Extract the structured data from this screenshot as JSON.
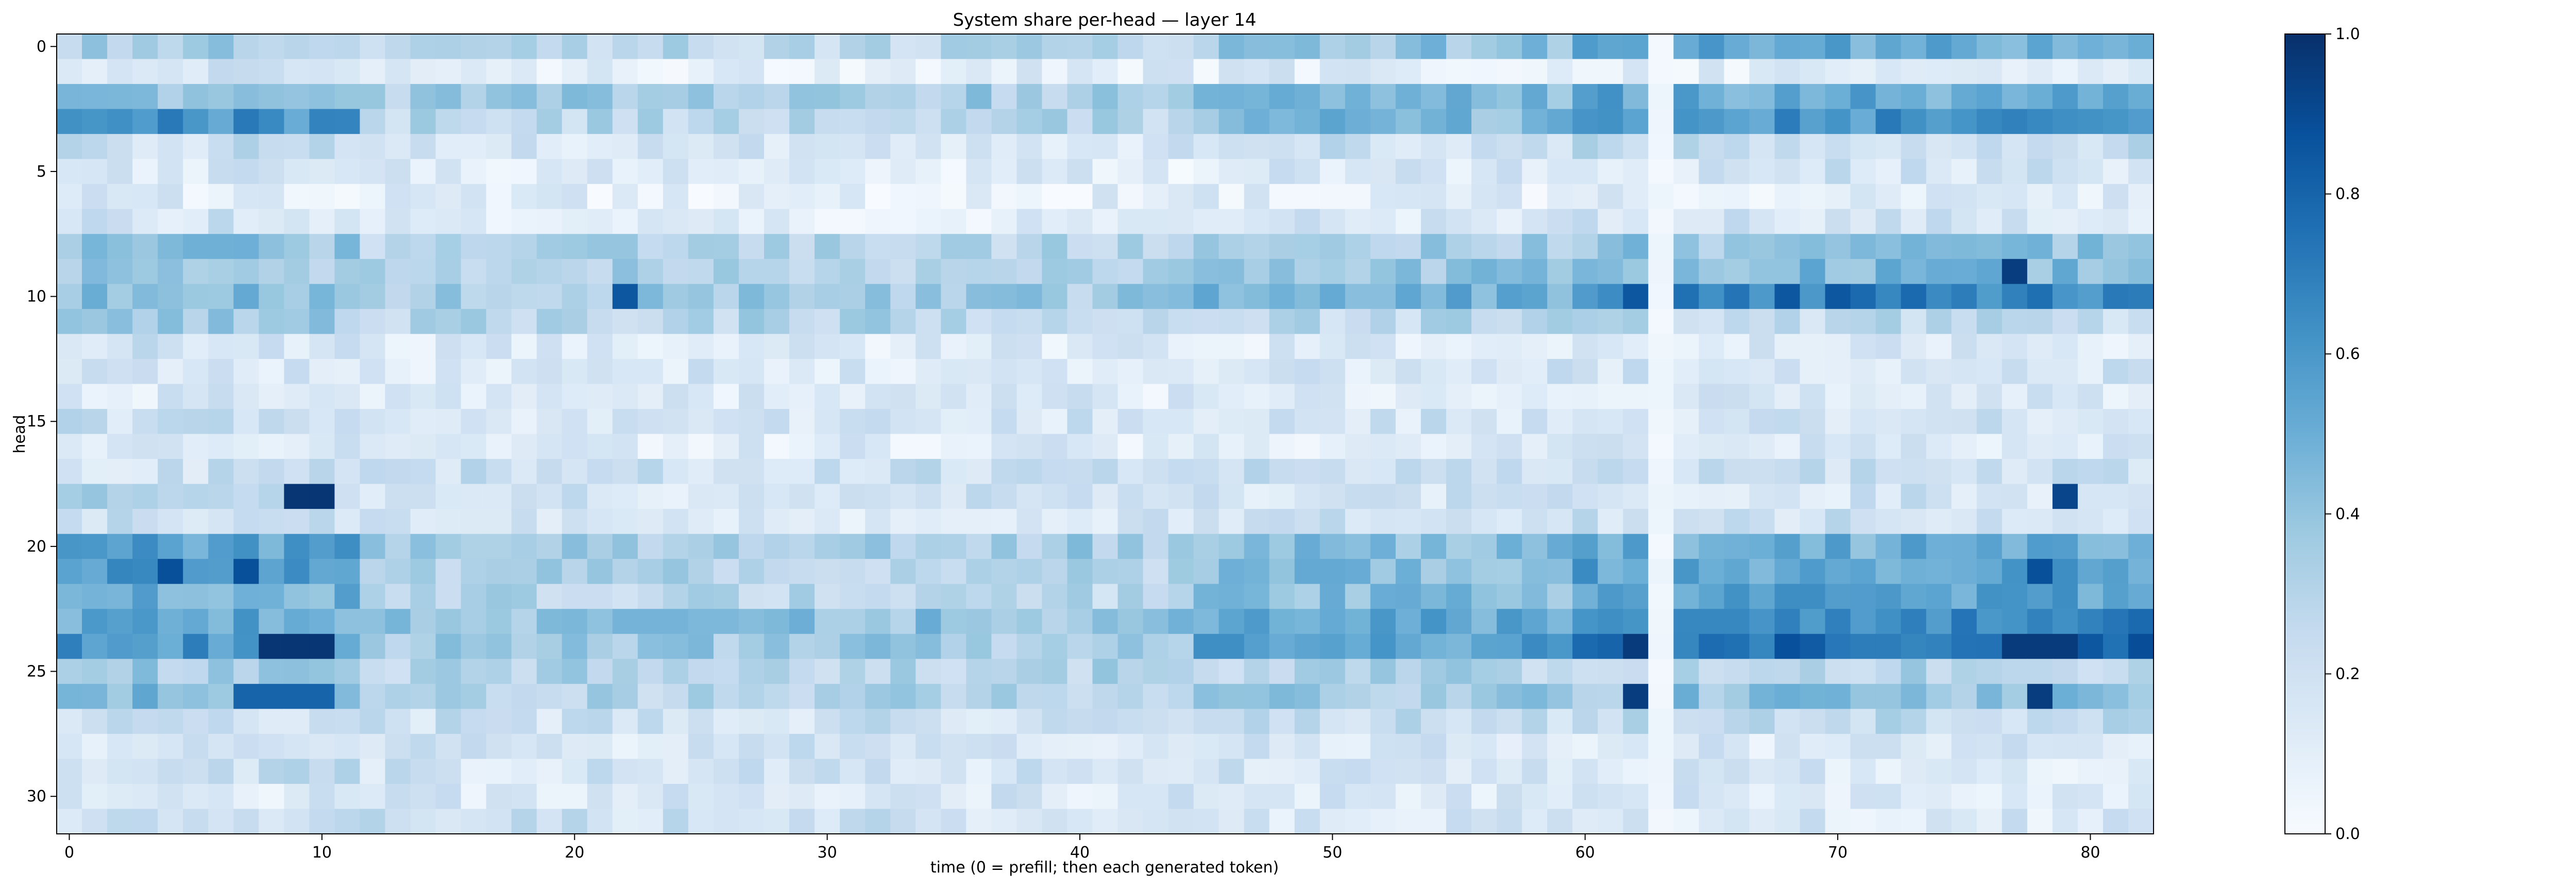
{
  "chart_data": {
    "type": "heatmap",
    "title": "System share per-head — layer 14",
    "xlabel": "time (0 = prefill; then each generated token)",
    "ylabel": "head",
    "x_ticks": [
      0,
      10,
      20,
      30,
      40,
      50,
      60,
      70,
      80
    ],
    "y_ticks": [
      0,
      5,
      10,
      15,
      20,
      25,
      30
    ],
    "n_cols": 83,
    "n_rows": 32,
    "colormap": "Blues",
    "colorbar": {
      "range": [
        0.0,
        1.0
      ],
      "ticks": [
        "0.0",
        "0.2",
        "0.4",
        "0.6",
        "0.8",
        "1.0"
      ]
    },
    "gap_columns": [
      63
    ],
    "row_profiles": [
      {
        "head": 0,
        "left": 0.35,
        "mid": 0.28,
        "right": 0.5
      },
      {
        "head": 1,
        "left": 0.18,
        "mid": 0.12,
        "right": 0.12
      },
      {
        "head": 2,
        "left": 0.4,
        "mid": 0.35,
        "right": 0.52
      },
      {
        "head": 3,
        "left": 0.58,
        "mid": 0.28,
        "right": 0.6
      },
      {
        "head": 4,
        "left": 0.22,
        "mid": 0.17,
        "right": 0.25
      },
      {
        "head": 5,
        "left": 0.15,
        "mid": 0.12,
        "right": 0.18
      },
      {
        "head": 6,
        "left": 0.12,
        "mid": 0.1,
        "right": 0.12
      },
      {
        "head": 7,
        "left": 0.18,
        "mid": 0.12,
        "right": 0.18
      },
      {
        "head": 8,
        "left": 0.4,
        "mid": 0.3,
        "right": 0.38
      },
      {
        "head": 9,
        "left": 0.35,
        "mid": 0.32,
        "right": 0.45
      },
      {
        "head": 10,
        "left": 0.45,
        "mid": 0.35,
        "right": 0.68
      },
      {
        "head": 11,
        "left": 0.35,
        "mid": 0.3,
        "right": 0.25
      },
      {
        "head": 12,
        "left": 0.18,
        "mid": 0.12,
        "right": 0.15
      },
      {
        "head": 13,
        "left": 0.15,
        "mid": 0.15,
        "right": 0.18
      },
      {
        "head": 14,
        "left": 0.15,
        "mid": 0.13,
        "right": 0.15
      },
      {
        "head": 15,
        "left": 0.22,
        "mid": 0.18,
        "right": 0.18
      },
      {
        "head": 16,
        "left": 0.15,
        "mid": 0.12,
        "right": 0.15
      },
      {
        "head": 17,
        "left": 0.2,
        "mid": 0.22,
        "right": 0.22
      },
      {
        "head": 18,
        "left": 0.3,
        "mid": 0.18,
        "right": 0.18
      },
      {
        "head": 19,
        "left": 0.2,
        "mid": 0.17,
        "right": 0.2
      },
      {
        "head": 20,
        "left": 0.55,
        "mid": 0.35,
        "right": 0.5
      },
      {
        "head": 21,
        "left": 0.6,
        "mid": 0.3,
        "right": 0.55
      },
      {
        "head": 22,
        "left": 0.5,
        "mid": 0.28,
        "right": 0.55
      },
      {
        "head": 23,
        "left": 0.52,
        "mid": 0.4,
        "right": 0.68
      },
      {
        "head": 24,
        "left": 0.6,
        "mid": 0.35,
        "right": 0.78
      },
      {
        "head": 25,
        "left": 0.35,
        "mid": 0.3,
        "right": 0.3
      },
      {
        "head": 26,
        "left": 0.45,
        "mid": 0.3,
        "right": 0.4
      },
      {
        "head": 27,
        "left": 0.22,
        "mid": 0.2,
        "right": 0.25
      },
      {
        "head": 28,
        "left": 0.18,
        "mid": 0.17,
        "right": 0.15
      },
      {
        "head": 29,
        "left": 0.22,
        "mid": 0.18,
        "right": 0.15
      },
      {
        "head": 30,
        "left": 0.15,
        "mid": 0.15,
        "right": 0.15
      },
      {
        "head": 31,
        "left": 0.18,
        "mid": 0.2,
        "right": 0.15
      }
    ],
    "hotspots": [
      {
        "head": 3,
        "cols": [
          4,
          7,
          72
        ],
        "value": 0.72
      },
      {
        "head": 10,
        "cols": [
          22,
          62,
          68,
          70
        ],
        "value": 0.85
      },
      {
        "head": 9,
        "cols": [
          77
        ],
        "value": 0.95
      },
      {
        "head": 18,
        "cols": [
          9,
          10
        ],
        "value": 0.98
      },
      {
        "head": 18,
        "cols": [
          79
        ],
        "value": 0.92
      },
      {
        "head": 21,
        "cols": [
          4,
          7,
          78
        ],
        "value": 0.88
      },
      {
        "head": 24,
        "cols": [
          8,
          9,
          10
        ],
        "value": 0.98
      },
      {
        "head": 24,
        "cols": [
          62,
          77,
          78,
          79
        ],
        "value": 0.96
      },
      {
        "head": 26,
        "cols": [
          62,
          78
        ],
        "value": 0.95
      },
      {
        "head": 26,
        "cols": [
          7,
          8,
          9,
          10
        ],
        "value": 0.8
      }
    ]
  }
}
